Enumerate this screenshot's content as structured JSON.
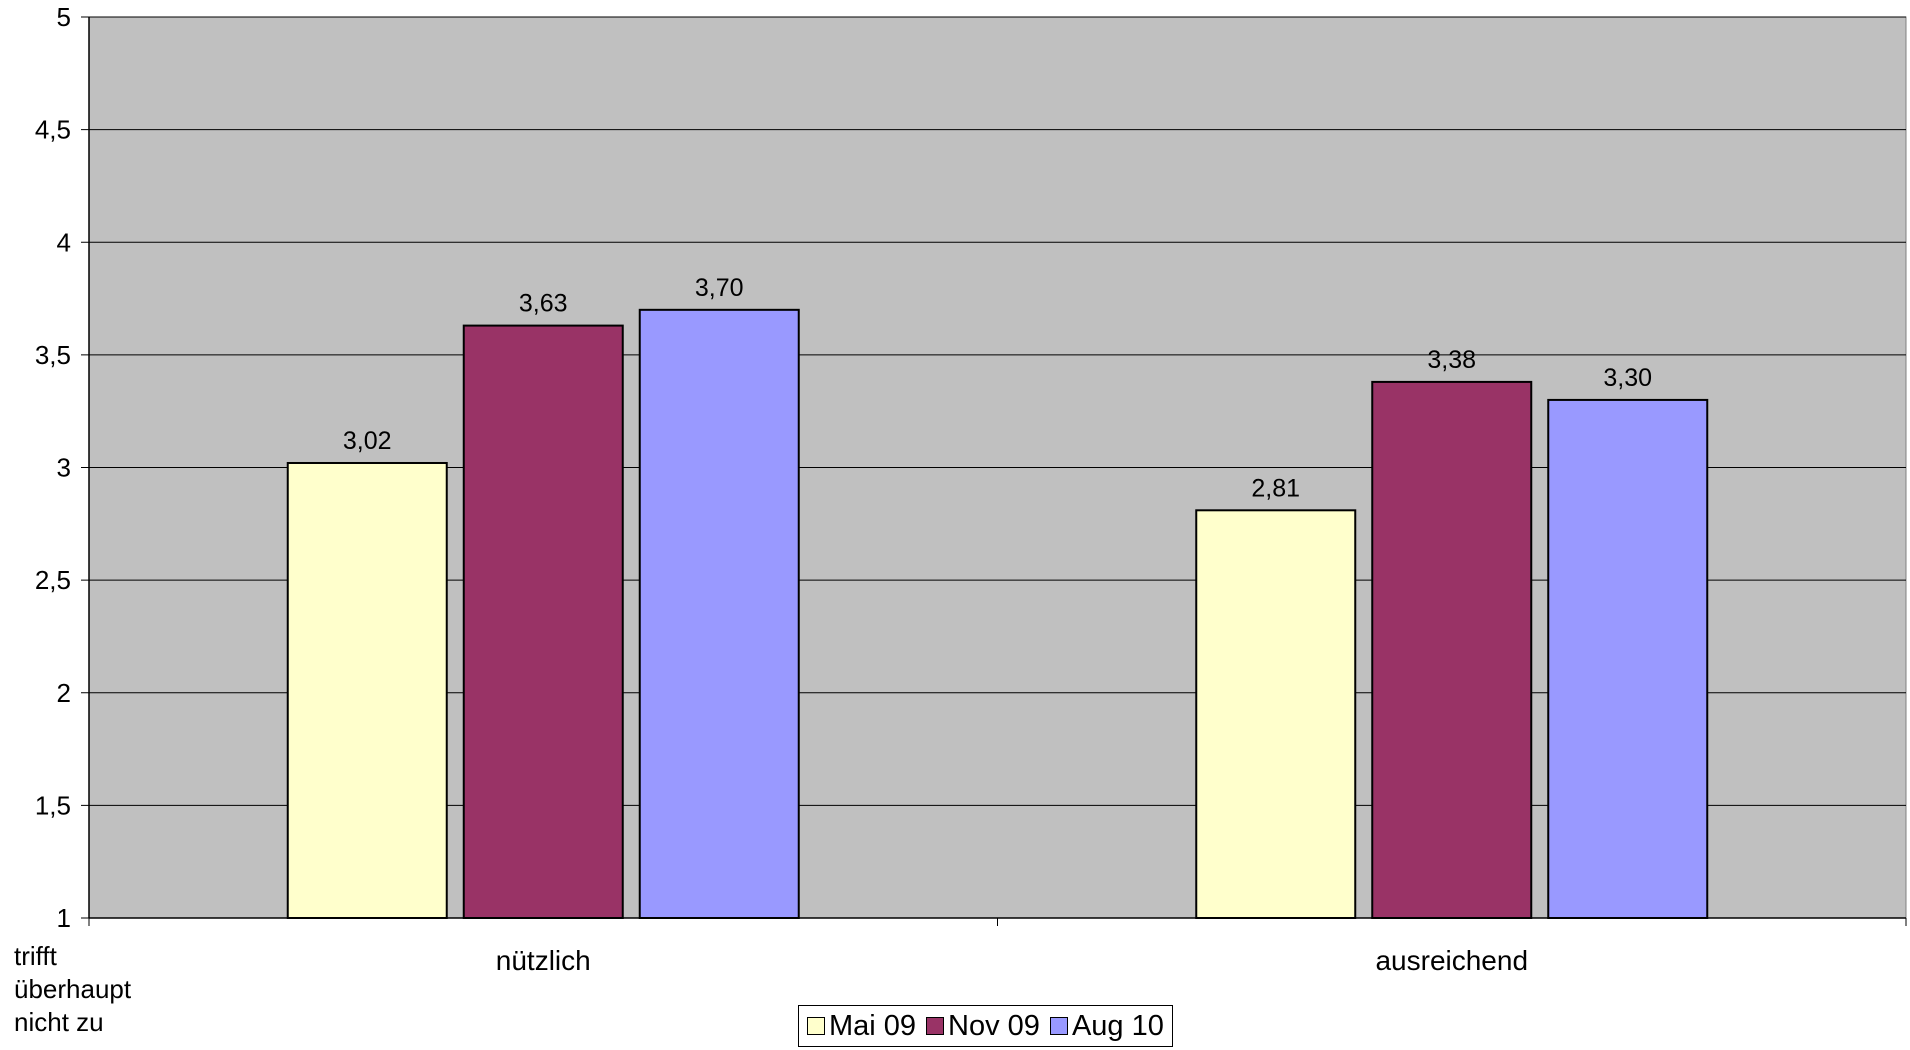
{
  "chart_data": {
    "type": "bar",
    "title": "",
    "xlabel": "",
    "ylabel": "",
    "y_bottom_note": [
      "trifft",
      "überhaupt",
      "nicht zu"
    ],
    "categories": [
      "nützlich",
      "ausreichend"
    ],
    "series": [
      {
        "name": "Mai 09",
        "values": [
          3.02,
          2.81
        ],
        "labels": [
          "3,02",
          "2,81"
        ],
        "color": "#FFFFCC"
      },
      {
        "name": "Nov 09",
        "values": [
          3.63,
          3.38
        ],
        "labels": [
          "3,63",
          "3,38"
        ],
        "color": "#993366"
      },
      {
        "name": "Aug 10",
        "values": [
          3.7,
          3.3
        ],
        "labels": [
          "3,70",
          "3,30"
        ],
        "color": "#9999FF"
      }
    ],
    "ylim": [
      1,
      5
    ],
    "yticks": [
      1,
      1.5,
      2,
      2.5,
      3,
      3.5,
      4,
      4.5,
      5
    ],
    "ytick_labels": [
      "1",
      "1,5",
      "2",
      "2,5",
      "3",
      "3,5",
      "4",
      "4,5",
      "5"
    ],
    "grid": true,
    "plot_background": "#C0C0C0",
    "legend_position": "bottom-center"
  }
}
